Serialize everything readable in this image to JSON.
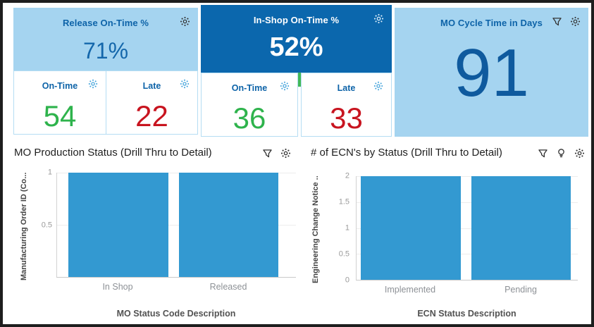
{
  "colors": {
    "tile_light_blue": "#a5d4f0",
    "tile_dark_blue": "#0b67ad",
    "kpi_title_blue": "#0d63a8",
    "kpi_value_blue": "#1467ab",
    "value_green": "#2eb34c",
    "value_red": "#c8141f",
    "bar_blue": "#3399d1",
    "selection_green": "#42b958"
  },
  "kpi": {
    "release": {
      "title": "Release On-Time %",
      "value": "71%",
      "icon": "sparkle-icon",
      "sub": [
        {
          "label": "On-Time",
          "value": "54",
          "color": "green",
          "icon": "sparkle-icon"
        },
        {
          "label": "Late",
          "value": "22",
          "color": "red",
          "icon": "sparkle-icon"
        }
      ]
    },
    "in_shop": {
      "title": "In-Shop On-Time %",
      "value": "52%",
      "icon": "sparkle-icon",
      "sub": [
        {
          "label": "On-Time",
          "value": "36",
          "color": "green",
          "icon": "sparkle-icon"
        },
        {
          "label": "Late",
          "value": "33",
          "color": "red",
          "icon": "sparkle-icon"
        }
      ]
    },
    "cycle": {
      "title": "MO Cycle Time in Days",
      "value": "91",
      "icons": [
        "filter-icon",
        "sparkle-icon"
      ]
    }
  },
  "chart_data": [
    {
      "type": "bar",
      "title": "MO Production Status (Drill Thru to Detail)",
      "categories": [
        "In Shop",
        "Released"
      ],
      "values": [
        1,
        1
      ],
      "xlabel": "MO Status Code Description",
      "ylabel": "Manufacturing Order ID (Co...",
      "ylim": [
        0,
        1
      ],
      "yticks": [
        1,
        0.5
      ],
      "grid": true,
      "legend": "none",
      "bar_color": "#3399d1",
      "icons": [
        "filter-icon",
        "sparkle-icon"
      ]
    },
    {
      "type": "bar",
      "title": "# of ECN's by Status (Drill Thru to Detail)",
      "categories": [
        "Implemented",
        "Pending"
      ],
      "values": [
        2,
        2
      ],
      "xlabel": "ECN Status Description",
      "ylabel": "Engineering Change Notice ...",
      "ylim": [
        0,
        2
      ],
      "yticks": [
        2,
        1.5,
        1,
        0.5,
        0
      ],
      "grid": true,
      "legend": "none",
      "bar_color": "#3399d1",
      "icons": [
        "filter-icon",
        "lightbulb-icon",
        "sparkle-icon"
      ]
    }
  ]
}
